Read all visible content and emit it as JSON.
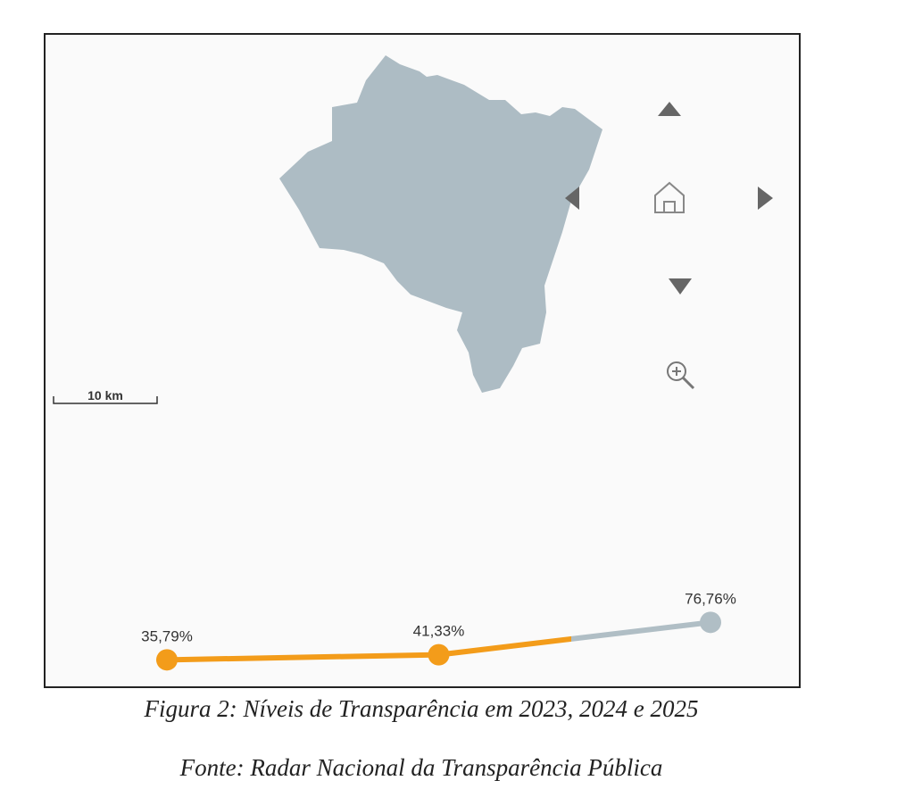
{
  "chart_data": {
    "type": "line",
    "categories": [
      null,
      null,
      null
    ],
    "values": [
      35.79,
      41.33,
      76.76
    ],
    "value_labels": [
      "35,79%",
      "41,33%",
      "76,76%"
    ],
    "color": "#f39c1a",
    "projection_color": "#b0bec5",
    "point_colors": [
      "#f39c1a",
      "#f39c1a",
      "#b0bec5"
    ]
  },
  "map": {
    "scale_label": "10 km"
  },
  "caption": "Figura 2: Níveis de Transparência em 2023, 2024 e 2025",
  "source": "Fonte: Radar Nacional da Transparência Pública"
}
